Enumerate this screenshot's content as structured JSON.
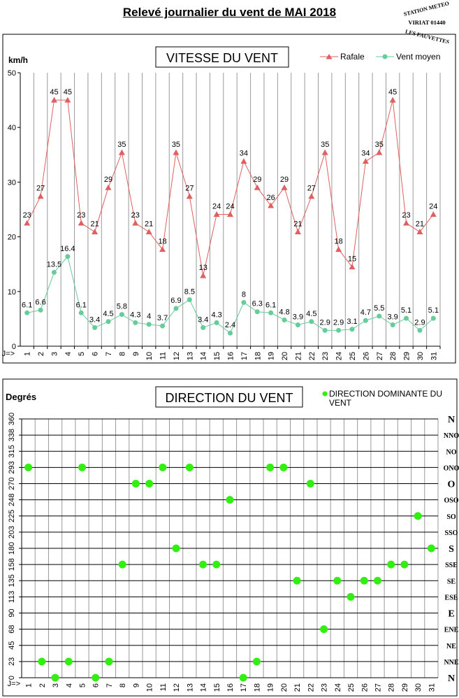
{
  "page": {
    "title": "Relevé journalier du vent de MAI 2018",
    "stamp_lines": [
      "STATION METEO",
      "VIRIAT 01440",
      "LES FAUVETTES"
    ]
  },
  "colors": {
    "rafale": "#e06060",
    "vent": "#66cc99",
    "dot": "#33ee11",
    "grid": "#999999",
    "hgrid": "#000000"
  },
  "chart_data": [
    {
      "type": "line",
      "title": "VITESSE DU VENT",
      "ylabel": "km/h",
      "xlabel": "J=>",
      "ylim": [
        0,
        50
      ],
      "yticks": [
        0,
        10,
        20,
        30,
        40,
        50
      ],
      "x": [
        1,
        2,
        3,
        4,
        5,
        6,
        7,
        8,
        9,
        10,
        11,
        12,
        13,
        14,
        15,
        16,
        17,
        18,
        19,
        20,
        21,
        22,
        23,
        24,
        25,
        26,
        27,
        28,
        29,
        30,
        31
      ],
      "legend_position": "top-right",
      "grid": true,
      "series": [
        {
          "name": "Rafale",
          "marker": "triangle",
          "values": [
            22.5,
            27.4,
            45,
            45,
            22.5,
            20.9,
            29,
            35.4,
            22.5,
            20.9,
            17.7,
            35.4,
            27.4,
            12.9,
            24.1,
            24.1,
            33.8,
            29,
            25.7,
            29,
            20.9,
            27.4,
            35.4,
            17.7,
            14.5,
            33.8,
            35.4,
            45,
            22.5,
            20.9,
            24.1
          ],
          "labels": [
            "23",
            "27",
            "45",
            "45",
            "23",
            "21",
            "29",
            "35",
            "23",
            "21",
            "18",
            "35",
            "27",
            "13",
            "24",
            "24",
            "34",
            "29",
            "26",
            "29",
            "21",
            "27",
            "35",
            "18",
            "15",
            "34",
            "35",
            "45",
            "23",
            "21",
            "24"
          ]
        },
        {
          "name": "Vent moyen",
          "marker": "circle",
          "values": [
            6.1,
            6.6,
            13.5,
            16.4,
            6.1,
            3.4,
            4.5,
            5.8,
            4.3,
            4,
            3.7,
            6.9,
            8.5,
            3.4,
            4.3,
            2.4,
            8,
            6.3,
            6.1,
            4.8,
            3.9,
            4.5,
            2.9,
            2.9,
            3.1,
            4.7,
            5.5,
            3.9,
            5.1,
            2.9,
            5.1
          ],
          "labels": [
            "6.1",
            "6.6",
            "13.5",
            "16.4",
            "6.1",
            "3.4",
            "4.5",
            "5.8",
            "4.3",
            "4",
            "3.7",
            "6.9",
            "8.5",
            "3.4",
            "4.3",
            "2.4",
            "8",
            "6.3",
            "6.1",
            "4.8",
            "3.9",
            "4.5",
            "2.9",
            "2.9",
            "3.1",
            "4.7",
            "5.5",
            "3.9",
            "5.1",
            "2.9",
            "5.1"
          ]
        }
      ]
    },
    {
      "type": "scatter",
      "title": "DIRECTION DU VENT",
      "ylabel": "Degrés",
      "xlabel": "J=>",
      "ylim": [
        0,
        360
      ],
      "yticks": [
        0,
        23,
        45,
        68,
        90,
        113,
        135,
        158,
        180,
        203,
        225,
        248,
        270,
        293,
        315,
        338,
        360
      ],
      "right_labels": [
        "N",
        "NNE",
        "NE",
        "ENE",
        "E",
        "ESE",
        "SE",
        "SSE",
        "S",
        "SSO",
        "SO",
        "OSO",
        "O",
        "ONO",
        "NO",
        "NNO",
        "N"
      ],
      "x": [
        1,
        2,
        3,
        4,
        5,
        6,
        7,
        8,
        9,
        10,
        11,
        12,
        13,
        14,
        15,
        16,
        17,
        18,
        19,
        20,
        21,
        22,
        23,
        24,
        25,
        26,
        27,
        28,
        29,
        30,
        31
      ],
      "legend_position": "top-right",
      "grid": true,
      "series": [
        {
          "name": "DIRECTION DOMINANTE DU VENT",
          "marker": "circle",
          "values": [
            293,
            23,
            0,
            23,
            293,
            0,
            23,
            158,
            270,
            270,
            293,
            180,
            293,
            158,
            158,
            248,
            0,
            23,
            293,
            293,
            135,
            270,
            68,
            135,
            113,
            135,
            135,
            158,
            158,
            225,
            180
          ]
        }
      ]
    }
  ]
}
